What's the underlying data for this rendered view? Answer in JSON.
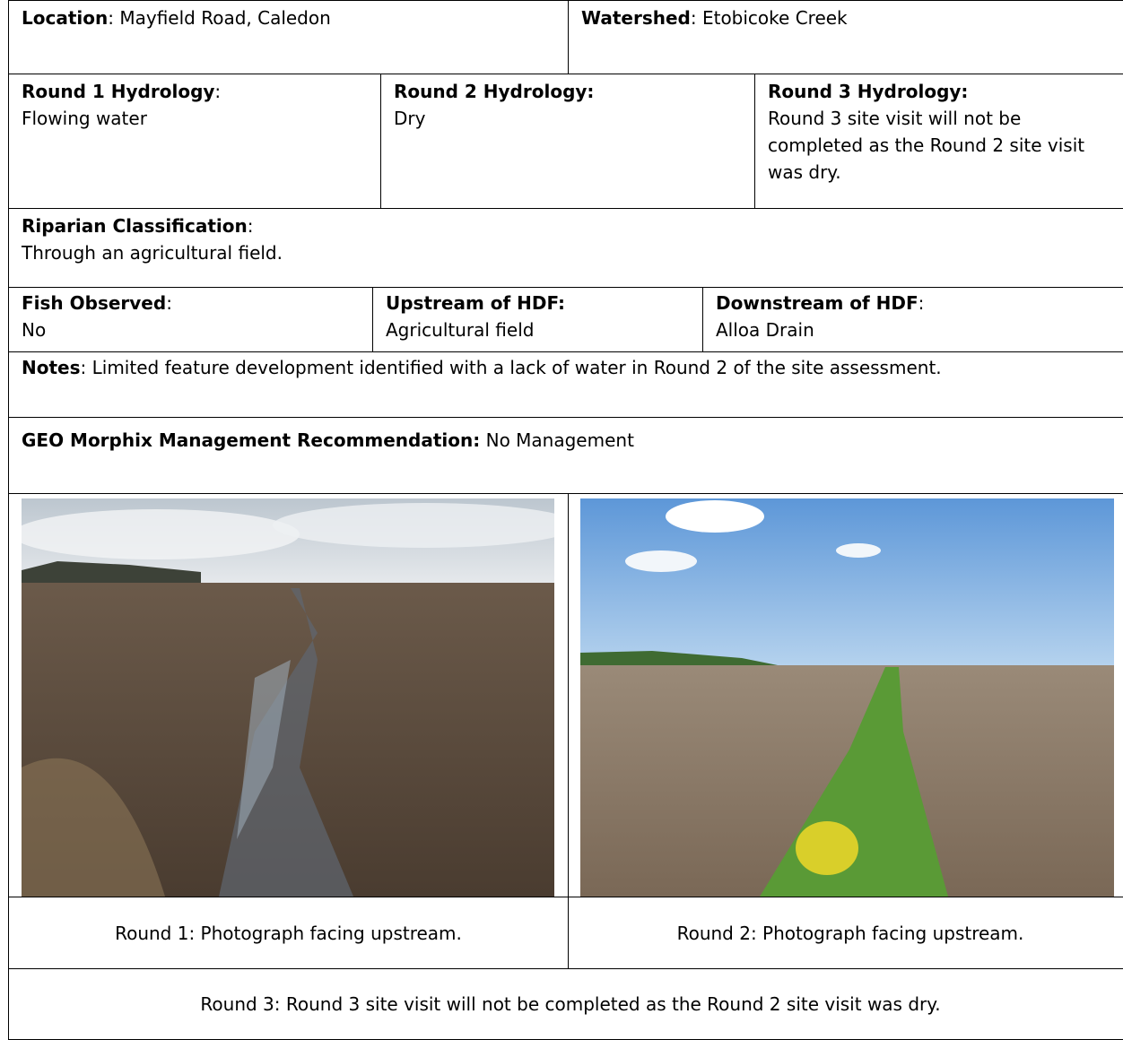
{
  "location": {
    "label": "Location",
    "sep": ":",
    "value": "Mayfield Road, Caledon"
  },
  "watershed": {
    "label": "Watershed",
    "sep": ":",
    "value": "Etobicoke Creek"
  },
  "hydrology": [
    {
      "label": "Round 1 Hydrology",
      "sep": ":",
      "value": "Flowing water"
    },
    {
      "label": "Round 2 Hydrology:",
      "value": "Dry"
    },
    {
      "label": "Round 3 Hydrology:",
      "value": "Round 3 site visit will not be completed as the Round 2 site visit was dry."
    }
  ],
  "riparian": {
    "label": "Riparian Classification",
    "sep": ":",
    "value": "Through an agricultural field."
  },
  "fish_observed": {
    "label": "Fish Observed",
    "sep": ":",
    "value": "No"
  },
  "upstream": {
    "label": "Upstream of HDF:",
    "value": "Agricultural field"
  },
  "downstream": {
    "label": "Downstream of HDF",
    "sep": ":",
    "value": "Alloa Drain"
  },
  "notes": {
    "label": "Notes",
    "sep": ":",
    "value": "Limited feature development identified with a lack of water in Round 2 of the site assessment."
  },
  "recommendation": {
    "label": "GEO Morphix Management Recommendation:",
    "value": "No Management"
  },
  "photos": [
    {
      "caption": "Round 1: Photograph facing upstream."
    },
    {
      "caption": "Round 2: Photograph facing upstream."
    }
  ],
  "round3_caption": "Round 3: Round 3 site visit will not be completed as the Round 2 site visit was dry."
}
